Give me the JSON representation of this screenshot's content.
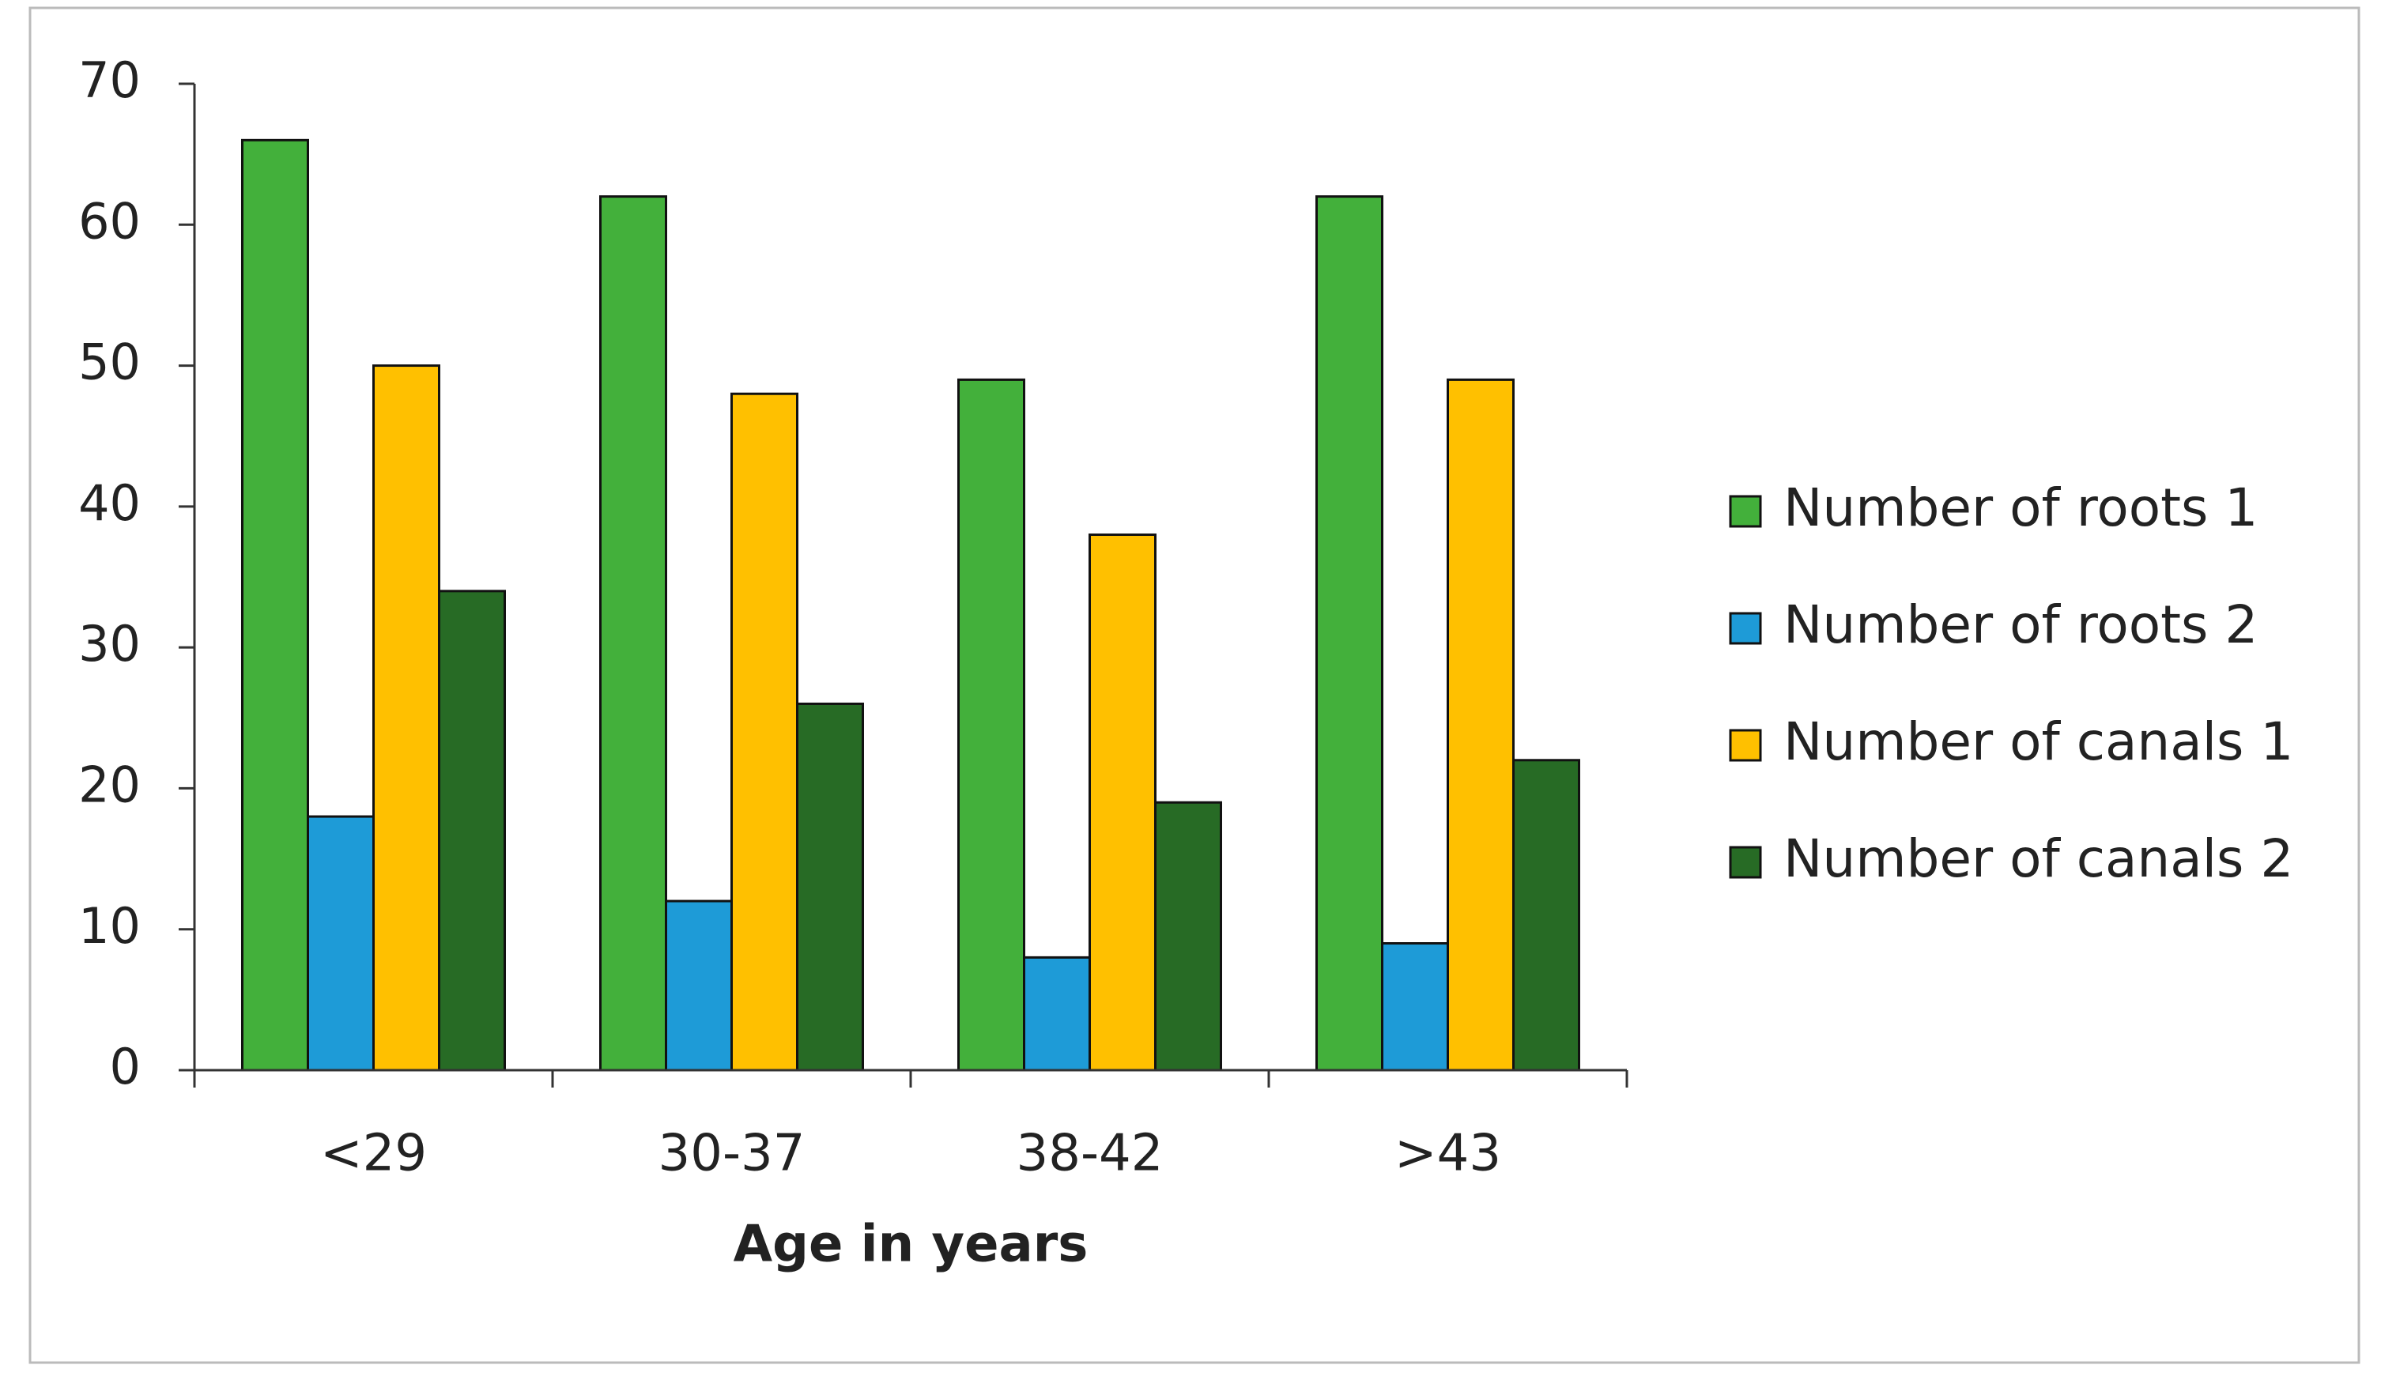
{
  "chart_data": {
    "type": "bar",
    "x_label": "Age in years",
    "categories": [
      "<29",
      "30-37",
      "38-42",
      ">43"
    ],
    "series": [
      {
        "name": "Number of roots 1",
        "color": "#43b03b",
        "values": [
          66,
          62,
          49,
          62
        ]
      },
      {
        "name": "Number of roots 2",
        "color": "#1e9bd7",
        "values": [
          18,
          12,
          8,
          9
        ]
      },
      {
        "name": "Number of canals 1",
        "color": "#ffc000",
        "values": [
          50,
          48,
          38,
          49
        ]
      },
      {
        "name": "Number of canals 2",
        "color": "#276b25",
        "values": [
          34,
          26,
          19,
          22
        ]
      }
    ],
    "ylim": [
      0,
      70
    ],
    "yticks": [
      0,
      10,
      20,
      30,
      40,
      50,
      60,
      70
    ],
    "grid": false,
    "legend": "right"
  }
}
